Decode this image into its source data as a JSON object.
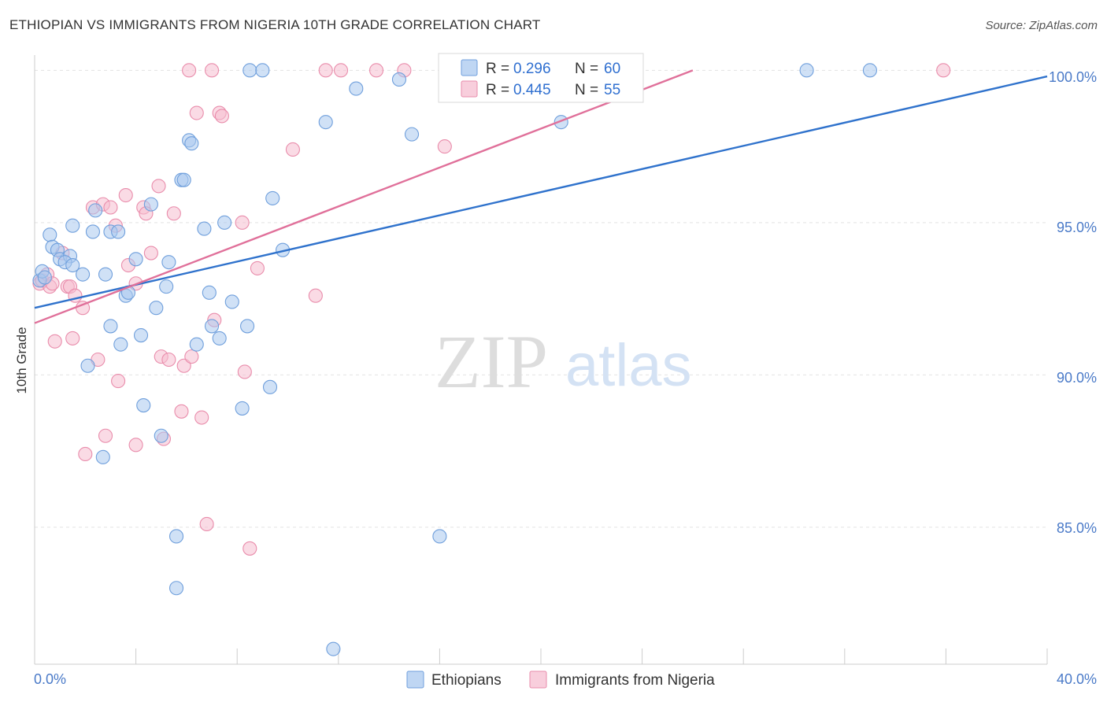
{
  "title": "ETHIOPIAN VS IMMIGRANTS FROM NIGERIA 10TH GRADE CORRELATION CHART",
  "source": "Source: ZipAtlas.com",
  "watermark": {
    "zip": "ZIP",
    "atlas": "atlas"
  },
  "colors": {
    "blue_fill": "#a9c8ef",
    "blue_stroke": "#6f9fdc",
    "blue_line": "#2f72cc",
    "pink_fill": "#f6bdd0",
    "pink_stroke": "#e98cab",
    "pink_line": "#e0709a",
    "grid": "#e3e3e3",
    "tick_label": "#4a7ac8",
    "value_text": "#2f6fd0"
  },
  "chart_data": {
    "type": "scatter",
    "title": "ETHIOPIAN VS IMMIGRANTS FROM NIGERIA 10TH GRADE CORRELATION CHART",
    "xlabel": "",
    "ylabel": "10th Grade",
    "xlim": [
      0,
      40
    ],
    "ylim": [
      80.5,
      100.5
    ],
    "x_tick_labels": [
      "0.0%",
      "40.0%"
    ],
    "y_ticks": [
      85,
      90,
      95,
      100
    ],
    "y_tick_labels": [
      "85.0%",
      "90.0%",
      "95.0%",
      "100.0%"
    ],
    "legend_position": "top-center",
    "stats": [
      {
        "r_label": "R =",
        "r_value": "0.296",
        "n_label": "N =",
        "n_value": "60"
      },
      {
        "r_label": "R =",
        "r_value": "0.445",
        "n_label": "N =",
        "n_value": "55"
      }
    ],
    "series": [
      {
        "name": "Ethiopians",
        "trend": {
          "x0": 0,
          "y0": 92.2,
          "x1": 40,
          "y1": 99.8
        },
        "points": [
          [
            0.2,
            93.1
          ],
          [
            0.3,
            93.4
          ],
          [
            0.4,
            93.2
          ],
          [
            0.6,
            94.6
          ],
          [
            0.7,
            94.2
          ],
          [
            0.9,
            94.1
          ],
          [
            1.0,
            93.8
          ],
          [
            1.4,
            93.9
          ],
          [
            1.2,
            93.7
          ],
          [
            1.5,
            93.6
          ],
          [
            1.9,
            93.3
          ],
          [
            2.3,
            94.7
          ],
          [
            2.8,
            93.3
          ],
          [
            1.5,
            94.9
          ],
          [
            2.4,
            95.4
          ],
          [
            3.0,
            94.7
          ],
          [
            3.3,
            94.7
          ],
          [
            2.1,
            90.3
          ],
          [
            3.0,
            91.6
          ],
          [
            3.4,
            91.0
          ],
          [
            3.6,
            92.6
          ],
          [
            3.7,
            92.7
          ],
          [
            4.0,
            93.8
          ],
          [
            4.2,
            91.3
          ],
          [
            4.3,
            89.0
          ],
          [
            4.6,
            95.6
          ],
          [
            4.8,
            92.2
          ],
          [
            5.0,
            88.0
          ],
          [
            5.2,
            92.9
          ],
          [
            5.3,
            93.7
          ],
          [
            5.6,
            83.0
          ],
          [
            5.6,
            84.7
          ],
          [
            5.8,
            96.4
          ],
          [
            5.9,
            96.4
          ],
          [
            6.1,
            97.7
          ],
          [
            6.2,
            97.6
          ],
          [
            6.4,
            91.0
          ],
          [
            6.7,
            94.8
          ],
          [
            6.9,
            92.7
          ],
          [
            7.0,
            91.6
          ],
          [
            7.3,
            91.2
          ],
          [
            7.5,
            95.0
          ],
          [
            7.8,
            92.4
          ],
          [
            8.2,
            88.9
          ],
          [
            8.4,
            91.6
          ],
          [
            8.5,
            100.0
          ],
          [
            9.0,
            100.0
          ],
          [
            9.3,
            89.6
          ],
          [
            9.4,
            95.8
          ],
          [
            9.8,
            94.1
          ],
          [
            11.5,
            98.3
          ],
          [
            11.8,
            81.0
          ],
          [
            12.7,
            99.4
          ],
          [
            14.4,
            99.7
          ],
          [
            14.9,
            97.9
          ],
          [
            16.0,
            84.7
          ],
          [
            20.8,
            98.3
          ],
          [
            30.5,
            100.0
          ],
          [
            33.0,
            100.0
          ],
          [
            2.7,
            87.3
          ]
        ]
      },
      {
        "name": "Immigrants from Nigeria",
        "trend": {
          "x0": 0,
          "y0": 91.7,
          "x1": 26.0,
          "y1": 100.0
        },
        "points": [
          [
            0.2,
            93.0
          ],
          [
            0.3,
            93.1
          ],
          [
            0.5,
            93.3
          ],
          [
            0.6,
            92.9
          ],
          [
            0.7,
            93.0
          ],
          [
            0.8,
            91.1
          ],
          [
            1.1,
            94.0
          ],
          [
            1.3,
            92.9
          ],
          [
            1.4,
            92.9
          ],
          [
            1.5,
            91.2
          ],
          [
            1.6,
            92.6
          ],
          [
            1.9,
            92.2
          ],
          [
            2.0,
            87.4
          ],
          [
            2.3,
            95.5
          ],
          [
            2.5,
            90.5
          ],
          [
            2.7,
            95.6
          ],
          [
            2.8,
            88.0
          ],
          [
            3.0,
            95.5
          ],
          [
            3.2,
            94.9
          ],
          [
            3.3,
            89.8
          ],
          [
            3.6,
            95.9
          ],
          [
            3.7,
            93.6
          ],
          [
            4.0,
            87.7
          ],
          [
            4.0,
            93.0
          ],
          [
            4.3,
            95.5
          ],
          [
            4.4,
            95.3
          ],
          [
            4.6,
            94.0
          ],
          [
            4.9,
            96.2
          ],
          [
            5.0,
            90.6
          ],
          [
            5.1,
            87.9
          ],
          [
            5.3,
            90.5
          ],
          [
            5.5,
            95.3
          ],
          [
            5.8,
            88.8
          ],
          [
            5.9,
            90.3
          ],
          [
            6.1,
            100.0
          ],
          [
            6.2,
            90.6
          ],
          [
            6.4,
            98.6
          ],
          [
            6.6,
            88.6
          ],
          [
            6.8,
            85.1
          ],
          [
            7.0,
            100.0
          ],
          [
            7.1,
            91.8
          ],
          [
            7.3,
            98.6
          ],
          [
            7.4,
            98.5
          ],
          [
            8.2,
            95.0
          ],
          [
            8.3,
            90.1
          ],
          [
            8.5,
            84.3
          ],
          [
            8.8,
            93.5
          ],
          [
            10.2,
            97.4
          ],
          [
            11.1,
            92.6
          ],
          [
            11.5,
            100.0
          ],
          [
            12.1,
            100.0
          ],
          [
            13.5,
            100.0
          ],
          [
            14.6,
            100.0
          ],
          [
            16.2,
            97.5
          ],
          [
            35.9,
            100.0
          ]
        ]
      }
    ]
  }
}
